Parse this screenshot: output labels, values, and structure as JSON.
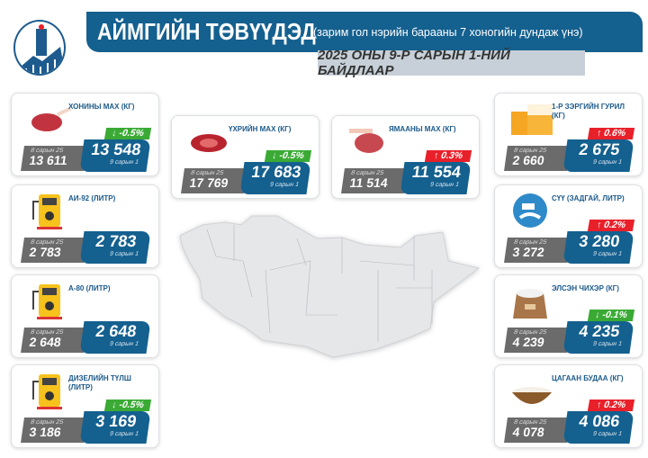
{
  "header": {
    "title": "АЙМГИЙН ТӨВҮҮДЭД",
    "subtitle": "(зарим гол нэрийн барааны 7 хоногийн дундаж үнэ)",
    "date": "2025 ОНЫ 9-Р САРЫН 1-НИЙ БАЙДЛААР"
  },
  "colors": {
    "brand": "#14608f",
    "old": "#6b6b6b",
    "down": "#3aaa35",
    "up": "#e8202a",
    "map": "#e6e7e9"
  },
  "items": [
    {
      "title": "ХОНИНЫ МАХ (КГ)",
      "icon": "lamb-meat-icon",
      "old_label": "8 сарын 25",
      "old": "13 611",
      "new": "13 548",
      "new_label": "9 сарын 1",
      "change": "↓ -0.5%",
      "dir": "down"
    },
    {
      "title": "ҮХРИЙН МАХ (КГ)",
      "icon": "beef-icon",
      "old_label": "8 сарын 25",
      "old": "17 769",
      "new": "17 683",
      "new_label": "9 сарын 1",
      "change": "↓ -0.5%",
      "dir": "down"
    },
    {
      "title": "ЯМААНЫ МАХ (КГ)",
      "icon": "goat-meat-icon",
      "old_label": "8 сарын 25",
      "old": "11 514",
      "new": "11 554",
      "new_label": "9 сарын 1",
      "change": "↑ 0.3%",
      "dir": "up"
    },
    {
      "title": "1-Р ЗЭРГИЙН ГУРИЛ (КГ)",
      "icon": "flour-icon",
      "old_label": "8 сарын 25",
      "old": "2 660",
      "new": "2 675",
      "new_label": "9 сарын 1",
      "change": "↑ 0.6%",
      "dir": "up"
    },
    {
      "title": "АИ-92 (ЛИТР)",
      "icon": "fuel-pump-icon",
      "old_label": "8 сарын 25",
      "old": "2 783",
      "new": "2 783",
      "new_label": "9 сарын 1",
      "change": "",
      "dir": ""
    },
    {
      "title": "СҮҮ (ЗАДГАЙ, ЛИТР)",
      "icon": "milk-icon",
      "old_label": "8 сарын 25",
      "old": "3 272",
      "new": "3 280",
      "new_label": "9 сарын 1",
      "change": "↑ 0.2%",
      "dir": "up"
    },
    {
      "title": "А-80 (ЛИТР)",
      "icon": "fuel-pump-icon",
      "old_label": "8 сарын 25",
      "old": "2 648",
      "new": "2 648",
      "new_label": "9 сарын 1",
      "change": "",
      "dir": ""
    },
    {
      "title": "ЭЛСЭН ЧИХЭР (КГ)",
      "icon": "sugar-sack-icon",
      "old_label": "8 сарын 25",
      "old": "4 239",
      "new": "4 235",
      "new_label": "9 сарын 1",
      "change": "↓ -0.1%",
      "dir": "down"
    },
    {
      "title": "ДИЗЕЛИЙН ТҮЛШ (ЛИТР)",
      "icon": "fuel-pump-icon",
      "old_label": "8 сарын 25",
      "old": "3 186",
      "new": "3 169",
      "new_label": "9 сарын 1",
      "change": "↓ -0.5%",
      "dir": "down"
    },
    {
      "title": "ЦАГААН БУДАА (КГ)",
      "icon": "rice-bowl-icon",
      "old_label": "8 сарын 25",
      "old": "4 078",
      "new": "4 086",
      "new_label": "9 сарын 1",
      "change": "↑ 0.2%",
      "dir": "up"
    }
  ]
}
